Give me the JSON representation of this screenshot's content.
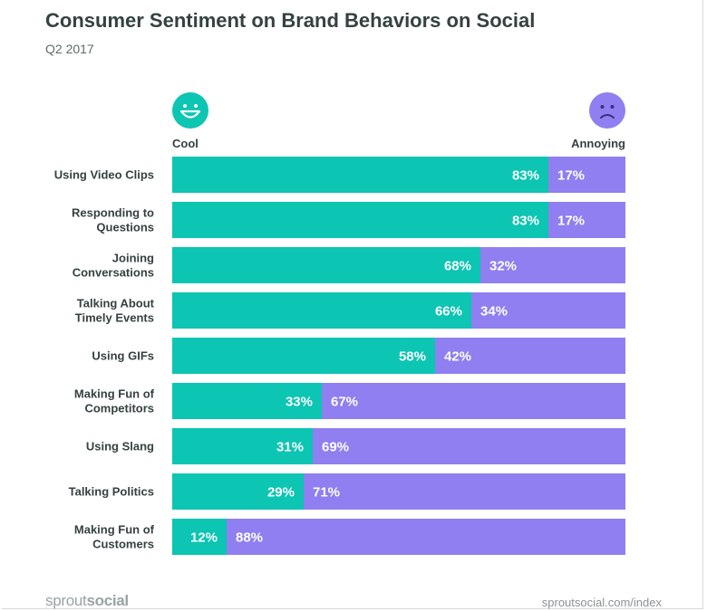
{
  "header": {
    "title": "Consumer Sentiment on Brand Behaviors on Social",
    "subtitle": "Q2 2017"
  },
  "legend": {
    "cool_label": "Cool",
    "annoying_label": "Annoying",
    "cool_icon": "smiling-face-icon",
    "annoying_icon": "frowning-face-icon"
  },
  "colors": {
    "cool": "#0cc5b3",
    "annoying": "#8f7ff0"
  },
  "chart_data": {
    "type": "bar",
    "orientation": "horizontal",
    "stacked": true,
    "percent_scale": [
      0,
      100
    ],
    "categories": [
      [
        "Using Video Clips"
      ],
      [
        "Responding to",
        "Questions"
      ],
      [
        "Joining",
        "Conversations"
      ],
      [
        "Talking About",
        "Timely Events"
      ],
      [
        "Using GIFs"
      ],
      [
        "Making Fun of",
        "Competitors"
      ],
      [
        "Using Slang"
      ],
      [
        "Talking Politics"
      ],
      [
        "Making Fun of",
        "Customers"
      ]
    ],
    "series": [
      {
        "name": "Cool",
        "values": [
          83,
          83,
          68,
          66,
          58,
          33,
          31,
          29,
          12
        ]
      },
      {
        "name": "Annoying",
        "values": [
          17,
          17,
          32,
          34,
          42,
          67,
          69,
          71,
          88
        ]
      }
    ]
  },
  "footer": {
    "logo_light": "sprout",
    "logo_bold": "social",
    "url": "sproutsocial.com/index"
  }
}
